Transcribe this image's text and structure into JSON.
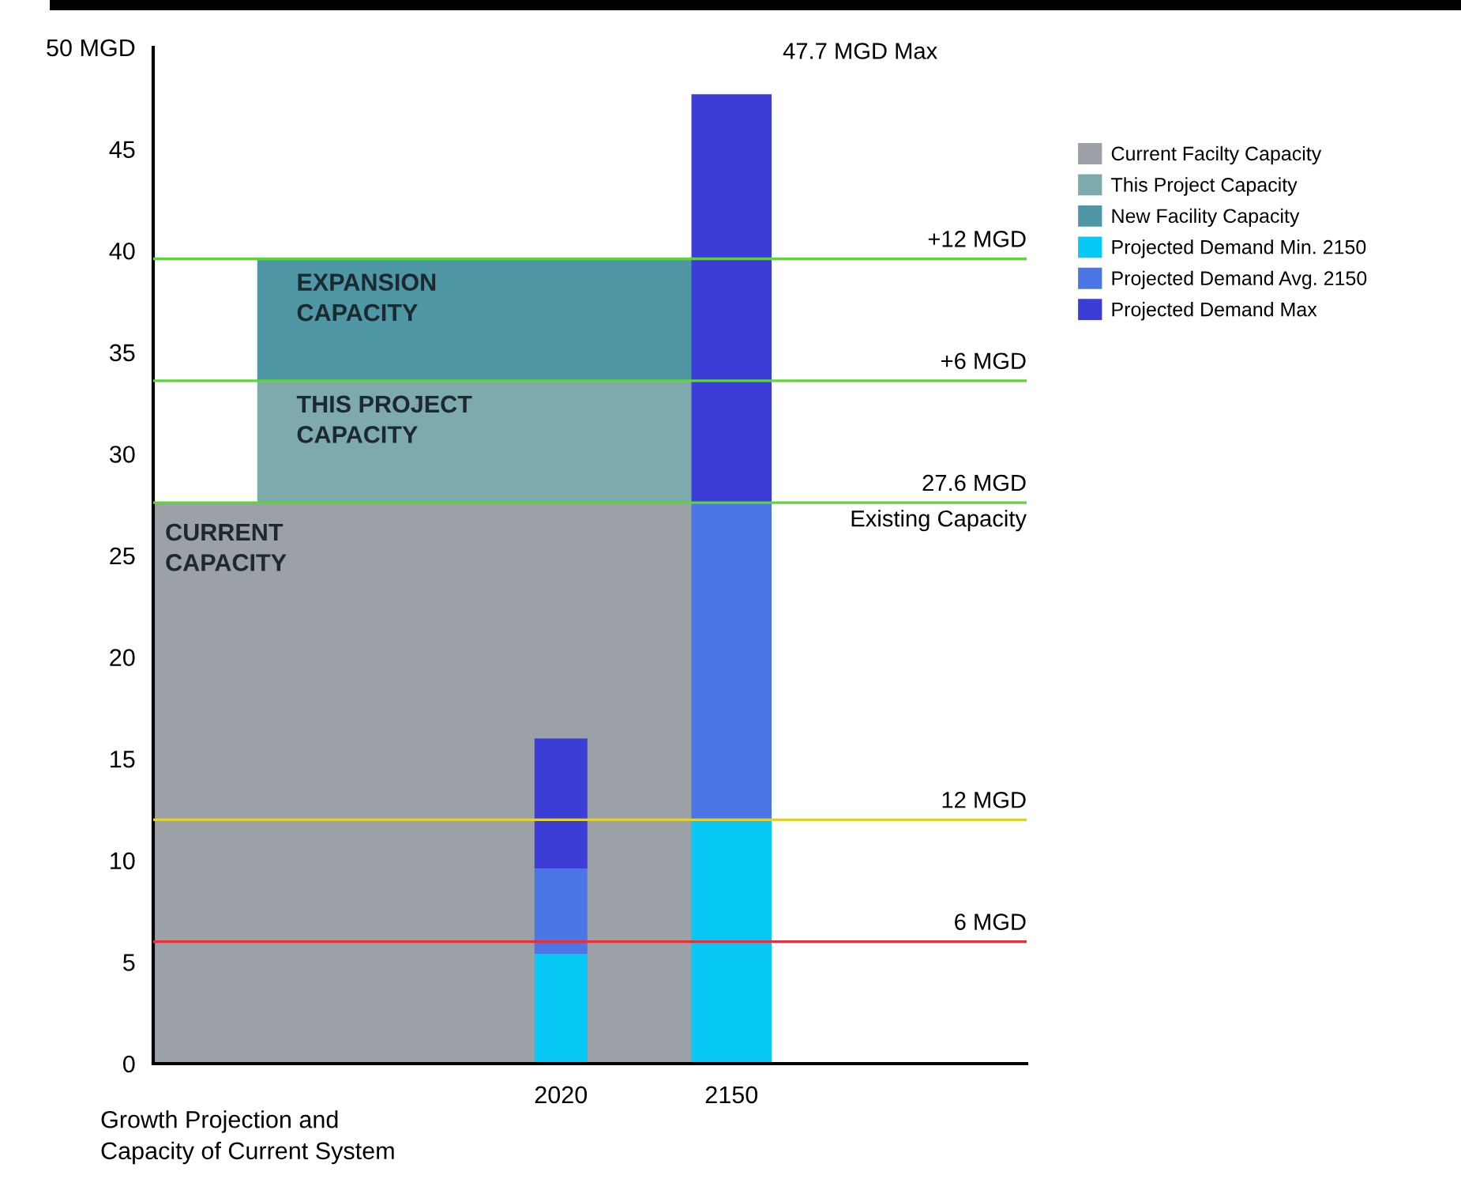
{
  "chart_data": {
    "type": "bar",
    "stacked": true,
    "categories": [
      "2020",
      "2150"
    ],
    "series": [
      {
        "name": "Projected Demand Min. 2150",
        "color": "#08c8f6",
        "values": [
          5.4,
          12
        ]
      },
      {
        "name": "Projected Demand Avg. 2150",
        "color": "#4a76e6",
        "values": [
          4.2,
          15.6
        ]
      },
      {
        "name": "Projected Demand Max",
        "color": "#3c3cd6",
        "values": [
          6.4,
          20.1
        ]
      }
    ],
    "bands": [
      {
        "axis": "y",
        "from": 0,
        "to": 27.6,
        "label": "Current Facilty Capacity",
        "color": "#9ba1a6"
      },
      {
        "axis": "y",
        "from": 27.6,
        "to": 33.6,
        "label": "This Project Capacity",
        "color": "#7eaaae"
      },
      {
        "axis": "y",
        "from": 33.6,
        "to": 39.6,
        "label": "New Facility Capacity",
        "color": "#4f97a5"
      }
    ],
    "ref_lines": [
      {
        "axis": "y",
        "value": 39.6,
        "label": "+12 MGD",
        "color": "#5fd43a"
      },
      {
        "axis": "y",
        "value": 33.6,
        "label": "+6 MGD",
        "color": "#5fd43a"
      },
      {
        "axis": "y",
        "value": 27.6,
        "label": "27.6 MGD\nExisting Capacity",
        "color": "#5fd43a"
      },
      {
        "axis": "y",
        "value": 12,
        "label": "12 MGD",
        "color": "#e0d030"
      },
      {
        "axis": "y",
        "value": 6,
        "label": "6 MGD",
        "color": "#e8303a"
      }
    ],
    "annotations": [
      "CURRENT\nCAPACITY",
      "THIS PROJECT\nCAPACITY",
      "EXPANSION\nCAPACITY",
      "47.7 MGD Max"
    ],
    "xlabel": "Growth Projection and\nCapacity of Current System",
    "ylim": [
      0,
      50
    ],
    "yticks": [
      {
        "value": 50,
        "label": "50 MGD"
      },
      45,
      40,
      35,
      30,
      25,
      20,
      15,
      10,
      5,
      0
    ],
    "legend": "right",
    "grid": false
  }
}
